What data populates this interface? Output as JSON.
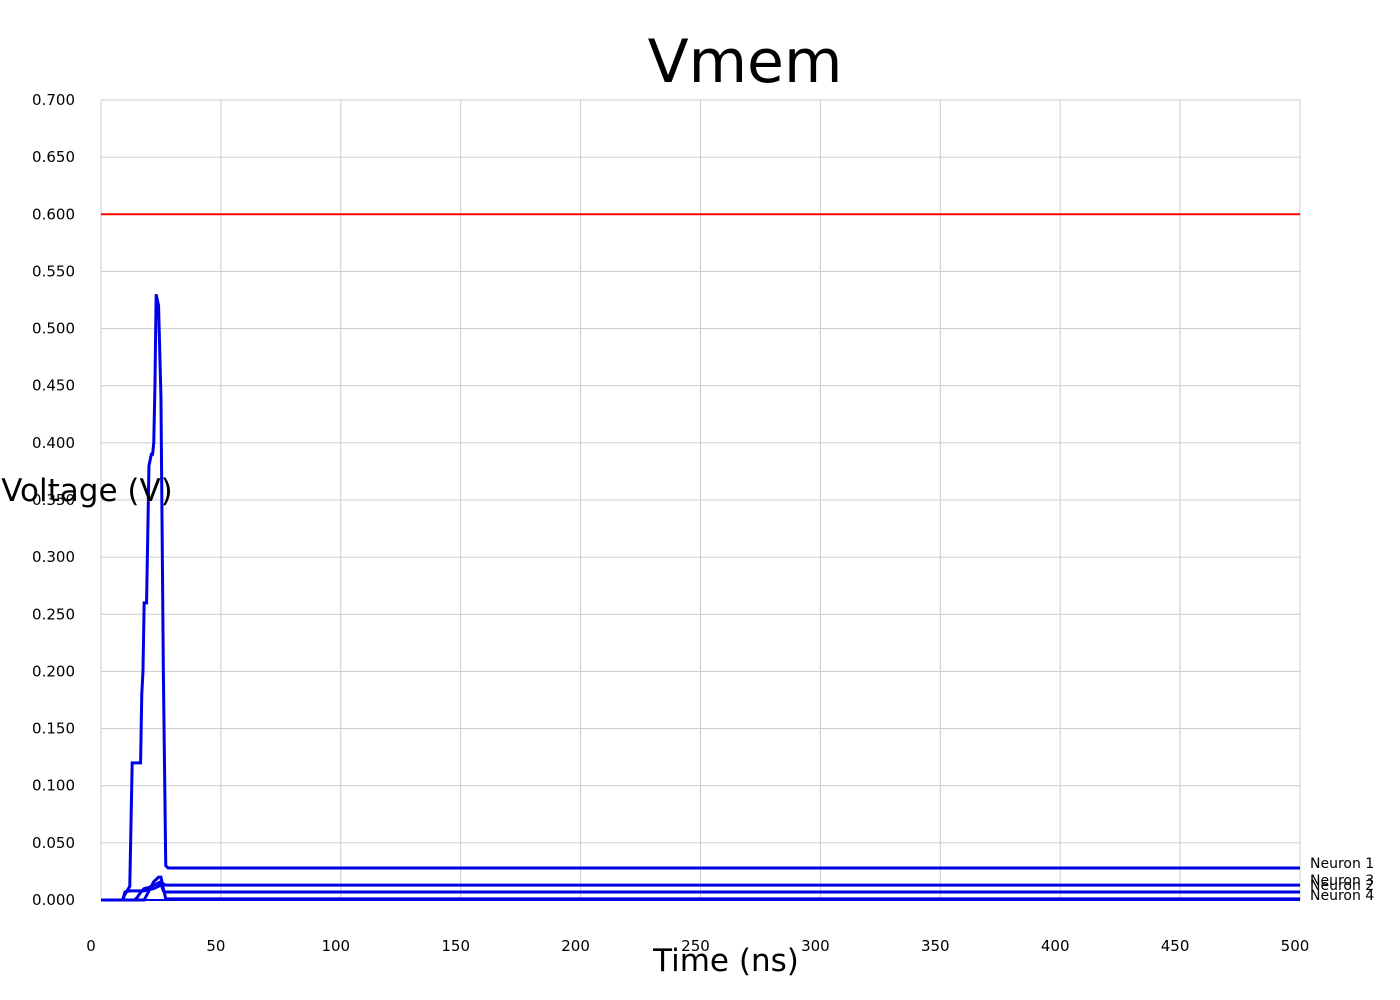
{
  "chart_data": {
    "type": "line",
    "title": "Vmem",
    "xlabel": "Time (ns)",
    "ylabel": "Voltage (V)",
    "xlim": [
      0,
      500
    ],
    "ylim": [
      0,
      0.7
    ],
    "xticks": [
      0,
      50,
      100,
      150,
      200,
      250,
      300,
      350,
      400,
      450,
      500
    ],
    "yticks": [
      0,
      0.05,
      0.1,
      0.15,
      0.2,
      0.25,
      0.3,
      0.35,
      0.4,
      0.45,
      0.5,
      0.55,
      0.6,
      0.65,
      0.7
    ],
    "xtick_labels": [
      "0",
      "50",
      "100",
      "150",
      "200",
      "250",
      "300",
      "350",
      "400",
      "450",
      "500"
    ],
    "ytick_labels": [
      "0.000",
      "0.050",
      "0.100",
      "0.150",
      "0.200",
      "0.250",
      "0.300",
      "0.350",
      "0.400",
      "0.450",
      "0.500",
      "0.550",
      "0.600",
      "0.650",
      "0.700"
    ],
    "grid": true,
    "legend": "line-end labels",
    "series": [
      {
        "name": "",
        "color": "#ff0000",
        "x": [
          0,
          500
        ],
        "y": [
          0.6,
          0.6
        ]
      },
      {
        "name": "Neuron 1",
        "color": "#0000e6",
        "x": [
          0,
          9,
          10,
          12,
          13,
          15,
          16,
          16.5,
          17,
          17.5,
          18,
          19,
          20,
          21,
          21.5,
          22,
          22.5,
          23,
          24,
          25,
          26,
          27,
          28,
          30,
          500
        ],
        "y": [
          0,
          0,
          0.005,
          0.012,
          0.12,
          0.12,
          0.12,
          0.12,
          0.18,
          0.2,
          0.26,
          0.26,
          0.38,
          0.39,
          0.39,
          0.4,
          0.45,
          0.53,
          0.52,
          0.44,
          0.2,
          0.03,
          0.028,
          0.028,
          0.028
        ]
      },
      {
        "name": "Neuron 3",
        "color": "#0000e6",
        "x": [
          0,
          14,
          15,
          16,
          17,
          18,
          20,
          21,
          22,
          23,
          24,
          25,
          26,
          27,
          500
        ],
        "y": [
          0,
          0,
          0.002,
          0.005,
          0.008,
          0.01,
          0.011,
          0.012,
          0.013,
          0.014,
          0.015,
          0.016,
          0.014,
          0.013,
          0.013
        ]
      },
      {
        "name": "Neuron 2",
        "color": "#0000e6",
        "x": [
          0,
          9,
          10,
          12,
          14,
          16,
          18,
          20,
          22,
          24,
          25,
          26,
          27,
          500
        ],
        "y": [
          0,
          0,
          0.007,
          0.008,
          0.008,
          0.008,
          0.008,
          0.009,
          0.01,
          0.012,
          0.014,
          0.008,
          0.007,
          0.007
        ]
      },
      {
        "name": "Neuron 4",
        "color": "#0000e6",
        "x": [
          0,
          18,
          19,
          20,
          21,
          22,
          23,
          24,
          25,
          26,
          27,
          500
        ],
        "y": [
          0,
          0,
          0.004,
          0.008,
          0.012,
          0.016,
          0.018,
          0.02,
          0.02,
          0.01,
          0.001,
          0.001
        ]
      }
    ]
  }
}
